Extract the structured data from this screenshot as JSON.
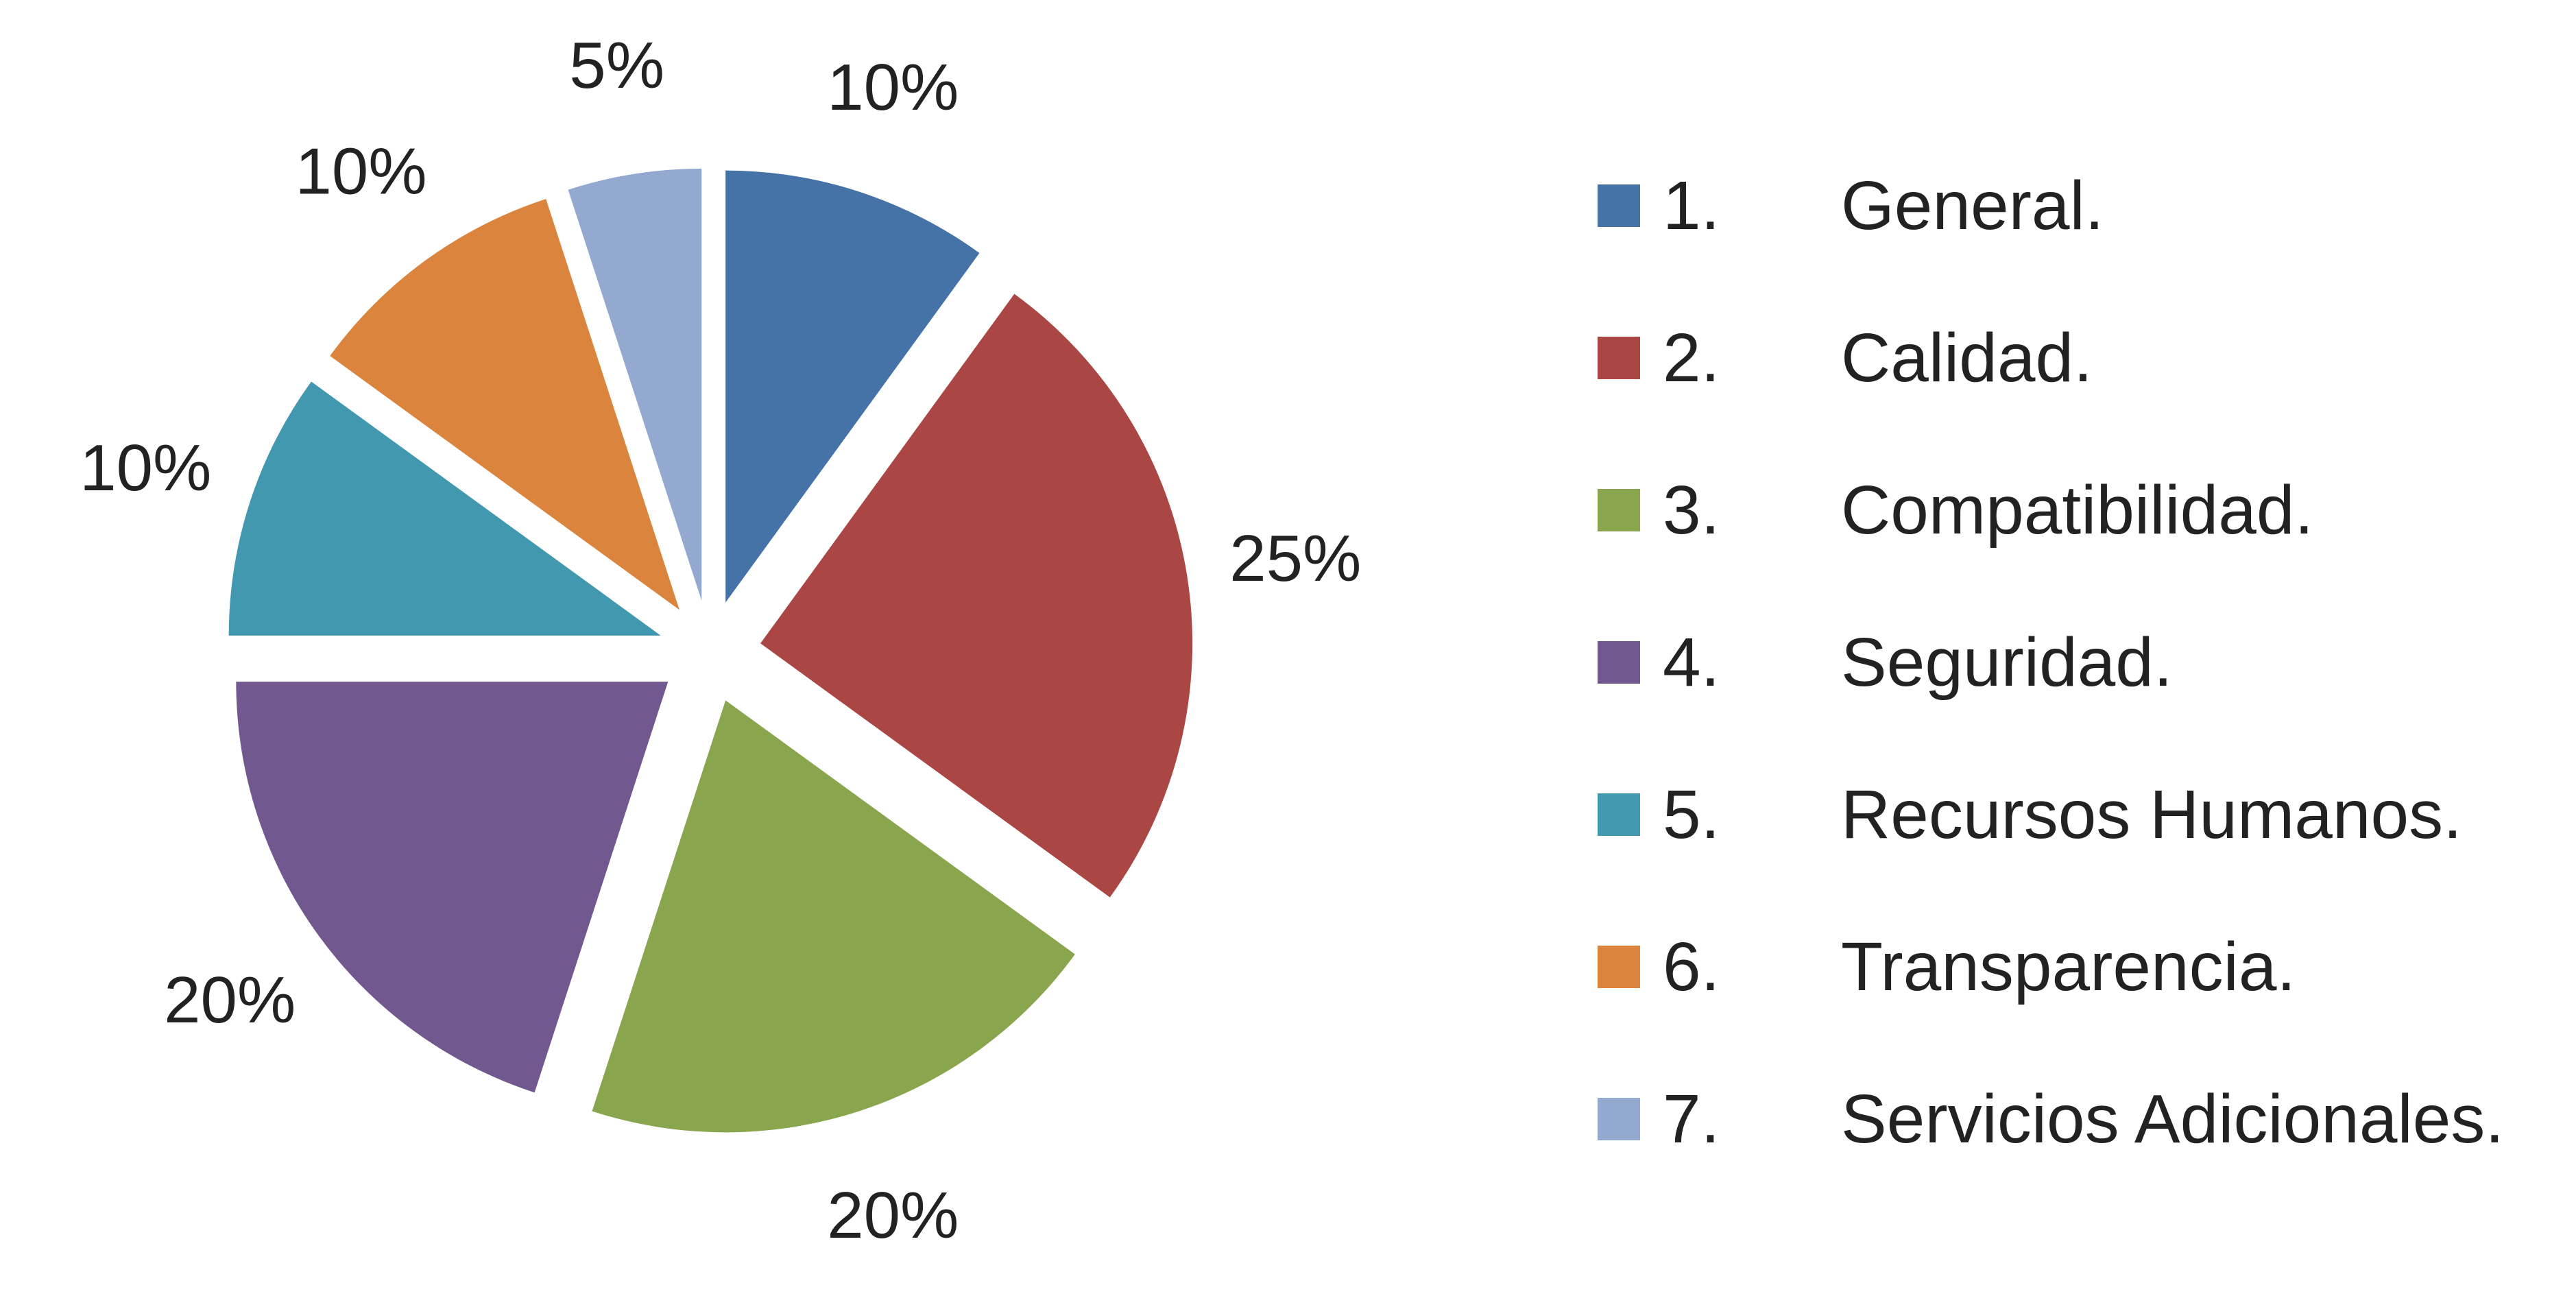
{
  "chart_data": {
    "type": "pie",
    "title": "",
    "exploded": true,
    "start_angle": "12 o'clock, clockwise",
    "legend_position": "right",
    "slices": [
      {
        "label": "1.\tGeneral.",
        "number": "1.",
        "name": "General.",
        "value": 10,
        "value_label": "10%",
        "color": "#4572A7"
      },
      {
        "label": "2.\tCalidad.",
        "number": "2.",
        "name": "Calidad.",
        "value": 25,
        "value_label": "25%",
        "color": "#AA4643"
      },
      {
        "label": "3.\tCompatibilidad.",
        "number": "3.",
        "name": "Compatibilidad.",
        "value": 20,
        "value_label": "20%",
        "color": "#89A54E"
      },
      {
        "label": "4.\tSeguridad.",
        "number": "4.",
        "name": "Seguridad.",
        "value": 20,
        "value_label": "20%",
        "color": "#71588F"
      },
      {
        "label": "5.\tRecursos Humanos.",
        "number": "5.",
        "name": "Recursos Humanos.",
        "value": 10,
        "value_label": "10%",
        "color": "#4198AF"
      },
      {
        "label": "6.\tTransparencia.",
        "number": "6.",
        "name": "Transparencia.",
        "value": 10,
        "value_label": "10%",
        "color": "#DB843D"
      },
      {
        "label": "7.\tServicios Adicionales.",
        "number": "7.",
        "name": "Servicios Adicionales.",
        "value": 5,
        "value_label": "5%",
        "color": "#93A9CF"
      }
    ]
  }
}
